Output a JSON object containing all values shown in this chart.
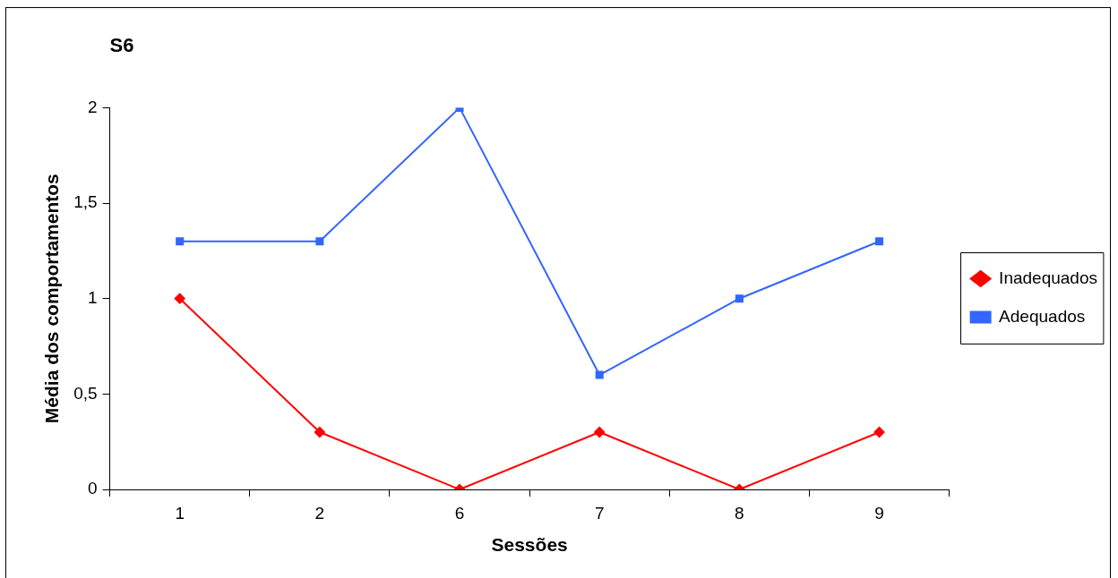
{
  "chart_data": {
    "type": "line",
    "title": "S6",
    "xlabel": "Sessões",
    "ylabel": "Média dos comportamentos",
    "categories": [
      "1",
      "2",
      "6",
      "7",
      "8",
      "9"
    ],
    "series": [
      {
        "name": "Inadequados",
        "color": "#ff0000",
        "marker": "diamond",
        "values": [
          1,
          0.3,
          0,
          0.3,
          0,
          0.3
        ]
      },
      {
        "name": "Adequados",
        "color": "#3366ff",
        "marker": "square",
        "values": [
          1.3,
          1.3,
          2,
          0.6,
          1,
          1.3
        ]
      }
    ],
    "ylim": [
      0,
      2
    ],
    "yticks": [
      0,
      {
        "value": 0.5,
        "label": "0,5"
      },
      1,
      {
        "value": 1.5,
        "label": "1,5"
      },
      2
    ],
    "grid": false,
    "legend": "right",
    "line_style": "solid"
  }
}
